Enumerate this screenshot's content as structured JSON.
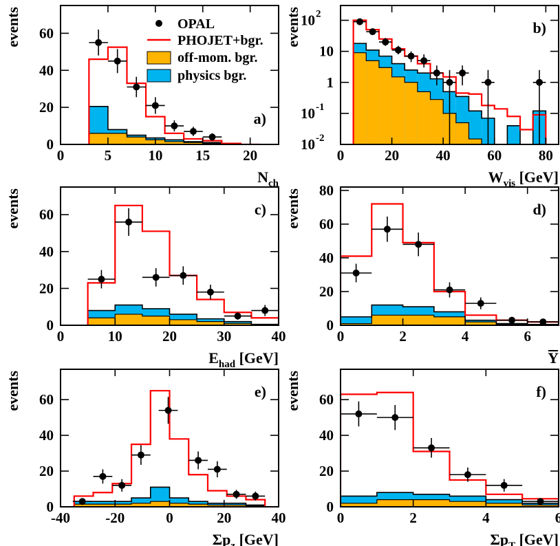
{
  "colors": {
    "data": "#000000",
    "mc": "#ff0000",
    "offmom": "#ffb400",
    "physics": "#00b4f0"
  },
  "legend": {
    "data": "OPAL",
    "mc": "PHOJET+bgr.",
    "offmom": "off-mom. bgr.",
    "physics": "physics bgr."
  },
  "chart_data": [
    {
      "type": "histogram",
      "panel": "a)",
      "ylabel": "events",
      "xlabel": "N",
      "xlabel_sub": "ch",
      "xlim": [
        0,
        23
      ],
      "ylim": [
        0,
        75
      ],
      "xticks": [
        "0",
        "5",
        "10",
        "15",
        "20"
      ],
      "yticks": [
        "0",
        "20",
        "40",
        "60"
      ],
      "edges": [
        3,
        5,
        7,
        9,
        11,
        13,
        15,
        17,
        19,
        21
      ],
      "mc": [
        46,
        52.5,
        33,
        15,
        6,
        3,
        2,
        0.5,
        0
      ],
      "physics_total": [
        20.5,
        8,
        5,
        3.5,
        2.5,
        1.5,
        1,
        0.3,
        0
      ],
      "offmom": [
        6,
        6,
        4,
        2.5,
        1.5,
        1,
        0.6,
        0.2,
        0
      ],
      "data_points": [
        {
          "x": 4,
          "y": 55,
          "xerr": 1,
          "yerr": 7
        },
        {
          "x": 6,
          "y": 45,
          "xerr": 1,
          "yerr": 6.5
        },
        {
          "x": 8,
          "y": 31,
          "xerr": 1,
          "yerr": 5.5
        },
        {
          "x": 10,
          "y": 21,
          "xerr": 1,
          "yerr": 4.5
        },
        {
          "x": 12,
          "y": 10,
          "xerr": 1,
          "yerr": 3
        },
        {
          "x": 14,
          "y": 7,
          "xerr": 1,
          "yerr": 2.5
        },
        {
          "x": 16,
          "y": 4,
          "xerr": 1,
          "yerr": 2
        }
      ]
    },
    {
      "type": "histogram",
      "panel": "b)",
      "ylabel": "events",
      "xlabel": "W",
      "xlabel_sub": "vis",
      "xlabel_unit": " [GeV]",
      "log": true,
      "xlim": [
        0,
        85
      ],
      "ylim": [
        0.01,
        300
      ],
      "xticks": [
        "0",
        "20",
        "40",
        "60",
        "80"
      ],
      "yticks": [
        {
          "base": "10",
          "exp": "-2",
          "value": 0.01
        },
        {
          "base": "10",
          "exp": "-1",
          "value": 0.1
        },
        {
          "base": "1",
          "exp": "",
          "value": 1
        },
        {
          "base": "10",
          "exp": "",
          "value": 10
        },
        {
          "base": "10",
          "exp": "2",
          "value": 100
        }
      ],
      "edges": [
        5,
        10,
        15,
        20,
        25,
        30,
        35,
        40,
        45,
        50,
        55,
        60,
        65,
        70,
        75,
        80
      ],
      "mc": [
        100,
        50,
        25,
        12,
        7,
        4,
        2,
        1.5,
        0.45,
        0.42,
        0.18,
        0.14,
        0.08,
        0.03,
        0.09
      ],
      "physics_total": [
        18,
        11,
        7,
        4,
        2.5,
        2,
        1.3,
        0.5,
        0.35,
        0.12,
        0.07,
        0.01,
        0.04,
        0.01,
        0.12
      ],
      "offmom": [
        9,
        5,
        3,
        1.5,
        1,
        0.5,
        0.28,
        0.1,
        0.05,
        0.015,
        0.01,
        0.01,
        0.01,
        0.01,
        0.01
      ],
      "data_points": [
        {
          "x": 7.5,
          "y": 90,
          "xerr": 2.5,
          "ylo": 70,
          "yhi": 115
        },
        {
          "x": 12.5,
          "y": 43,
          "xerr": 2.5,
          "ylo": 35,
          "yhi": 55
        },
        {
          "x": 17.5,
          "y": 20,
          "xerr": 2.5,
          "ylo": 15,
          "yhi": 27
        },
        {
          "x": 22.5,
          "y": 11,
          "xerr": 2.5,
          "ylo": 8,
          "yhi": 15
        },
        {
          "x": 27.5,
          "y": 7,
          "xerr": 2.5,
          "ylo": 4.5,
          "yhi": 10
        },
        {
          "x": 32.5,
          "y": 5,
          "xerr": 2.5,
          "ylo": 3,
          "yhi": 8
        },
        {
          "x": 37.5,
          "y": 2,
          "xerr": 2.5,
          "ylo": 0.8,
          "yhi": 3.5
        },
        {
          "x": 42.5,
          "y": 1,
          "xerr": 2.5,
          "ylo": 0.01,
          "yhi": 2.5
        },
        {
          "x": 47.5,
          "y": 2,
          "xerr": 2.5,
          "ylo": 0.8,
          "yhi": 3.5
        },
        {
          "x": 57.5,
          "y": 1,
          "xerr": 2.5,
          "ylo": 0.01,
          "yhi": 2.5
        },
        {
          "x": 77.5,
          "y": 1,
          "xerr": 2.5,
          "ylo": 0.01,
          "yhi": 2.5
        }
      ]
    },
    {
      "type": "histogram",
      "panel": "c)",
      "ylabel": "events",
      "xlabel": "E",
      "xlabel_sub": "had",
      "xlabel_unit": " [GeV]",
      "xlim": [
        0,
        40
      ],
      "ylim": [
        0,
        75
      ],
      "xticks": [
        "0",
        "10",
        "20",
        "30",
        "40"
      ],
      "yticks": [
        "0",
        "20",
        "40",
        "60"
      ],
      "edges": [
        5,
        10,
        15,
        20,
        25,
        30,
        35,
        40
      ],
      "mc": [
        23,
        65,
        51,
        27,
        14,
        7,
        4
      ],
      "physics_total": [
        8,
        11,
        9,
        6,
        3.5,
        2,
        0.5
      ],
      "offmom": [
        4,
        6,
        5,
        3,
        2,
        1,
        0.3
      ],
      "data_points": [
        {
          "x": 7.5,
          "y": 25,
          "xerr": 2.5,
          "yerr": 5
        },
        {
          "x": 12.5,
          "y": 56,
          "xerr": 2.5,
          "yerr": 7.5
        },
        {
          "x": 17.5,
          "y": 26,
          "xerr": 2.5,
          "yerr": 5
        },
        {
          "x": 22.5,
          "y": 27,
          "xerr": 2.5,
          "yerr": 5
        },
        {
          "x": 27.5,
          "y": 18,
          "xerr": 2.5,
          "yerr": 4
        },
        {
          "x": 32.5,
          "y": 5,
          "xerr": 2.5,
          "yerr": 2
        },
        {
          "x": 37.5,
          "y": 8,
          "xerr": 2.5,
          "yerr": 3
        }
      ]
    },
    {
      "type": "histogram",
      "panel": "d)",
      "ylabel": "events",
      "xlabel": "Y",
      "xlabel_bar": true,
      "xlim": [
        0,
        7
      ],
      "ylim": [
        0,
        82
      ],
      "xticks": [
        "0",
        "2",
        "4",
        "6"
      ],
      "yticks": [
        "0",
        "20",
        "40",
        "60",
        "80"
      ],
      "edges": [
        0,
        1,
        2,
        3,
        4,
        5,
        6,
        7
      ],
      "mc": [
        41,
        72,
        49,
        20,
        6,
        3,
        2
      ],
      "physics_total": [
        5,
        12,
        11,
        8,
        3,
        1,
        0.5
      ],
      "offmom": [
        1,
        6,
        6,
        5,
        2,
        0.5,
        0.3
      ],
      "data_points": [
        {
          "x": 0.5,
          "y": 31,
          "xerr": 0.5,
          "yerr": 5.5
        },
        {
          "x": 1.5,
          "y": 57,
          "xerr": 0.5,
          "yerr": 7.5
        },
        {
          "x": 2.5,
          "y": 48,
          "xerr": 0.5,
          "yerr": 7
        },
        {
          "x": 3.5,
          "y": 21,
          "xerr": 0.5,
          "yerr": 4.5
        },
        {
          "x": 4.5,
          "y": 13,
          "xerr": 0.5,
          "yerr": 3.5
        },
        {
          "x": 5.5,
          "y": 3,
          "xerr": 0.5,
          "yerr": 1.5
        },
        {
          "x": 6.5,
          "y": 2,
          "xerr": 0.5,
          "yerr": 1.3
        }
      ]
    },
    {
      "type": "histogram",
      "panel": "e)",
      "ylabel": "events",
      "xlabel": "Σp",
      "xlabel_sub": "z",
      "xlabel_unit": " [GeV]",
      "xlim": [
        -40,
        40
      ],
      "ylim": [
        0,
        77
      ],
      "xticks": [
        "-40",
        "-20",
        "0",
        "20",
        "40"
      ],
      "yticks": [
        "0",
        "20",
        "40",
        "60"
      ],
      "edges": [
        -35,
        -28,
        -21,
        -14,
        -7,
        0,
        7,
        14,
        21,
        28,
        35
      ],
      "mc": [
        6,
        8,
        13,
        35,
        65,
        38,
        18,
        9,
        6,
        4
      ],
      "physics_total": [
        3,
        3,
        3,
        5,
        11,
        5,
        3,
        2,
        2,
        1
      ],
      "offmom": [
        1.5,
        1.5,
        1.5,
        2,
        3,
        2,
        1.5,
        1,
        1,
        0.5
      ],
      "data_points": [
        {
          "x": -32,
          "y": 3,
          "xerr": 3.5,
          "yerr": 1.7
        },
        {
          "x": -24.5,
          "y": 17,
          "xerr": 3.5,
          "yerr": 4
        },
        {
          "x": -17.5,
          "y": 12,
          "xerr": 3.5,
          "yerr": 3.5
        },
        {
          "x": -10.5,
          "y": 29,
          "xerr": 3.5,
          "yerr": 5.5
        },
        {
          "x": -0.5,
          "y": 54,
          "xerr": 3.5,
          "yerr": 7.5
        },
        {
          "x": 10.5,
          "y": 26,
          "xerr": 3.5,
          "yerr": 5
        },
        {
          "x": 17.5,
          "y": 21,
          "xerr": 3.5,
          "yerr": 4.5
        },
        {
          "x": 24.5,
          "y": 7,
          "xerr": 3.5,
          "yerr": 2.5
        },
        {
          "x": 31.5,
          "y": 6,
          "xerr": 3.5,
          "yerr": 2.5
        }
      ]
    },
    {
      "type": "histogram",
      "panel": "f)",
      "ylabel": "events",
      "xlabel": "Σp",
      "xlabel_sub": "T",
      "xlabel_unit": " [GeV]",
      "xlim": [
        0,
        6
      ],
      "ylim": [
        0,
        77
      ],
      "xticks": [
        "0",
        "2",
        "4",
        "6"
      ],
      "yticks": [
        "0",
        "20",
        "40",
        "60"
      ],
      "edges": [
        0,
        1,
        2,
        3,
        4,
        5,
        6
      ],
      "mc": [
        63,
        64,
        31,
        15,
        7,
        4.5
      ],
      "physics_total": [
        6,
        8,
        7,
        6,
        4,
        2
      ],
      "offmom": [
        2,
        4,
        4,
        3,
        2,
        1
      ],
      "data_points": [
        {
          "x": 0.5,
          "y": 52,
          "xerr": 0.5,
          "yerr": 7
        },
        {
          "x": 1.5,
          "y": 50,
          "xerr": 0.5,
          "yerr": 7
        },
        {
          "x": 2.5,
          "y": 33,
          "xerr": 0.5,
          "yerr": 5.5
        },
        {
          "x": 3.5,
          "y": 18,
          "xerr": 0.5,
          "yerr": 4
        },
        {
          "x": 4.5,
          "y": 12,
          "xerr": 0.5,
          "yerr": 3.5
        },
        {
          "x": 5.5,
          "y": 3,
          "xerr": 0.5,
          "yerr": 1.7
        }
      ]
    }
  ]
}
